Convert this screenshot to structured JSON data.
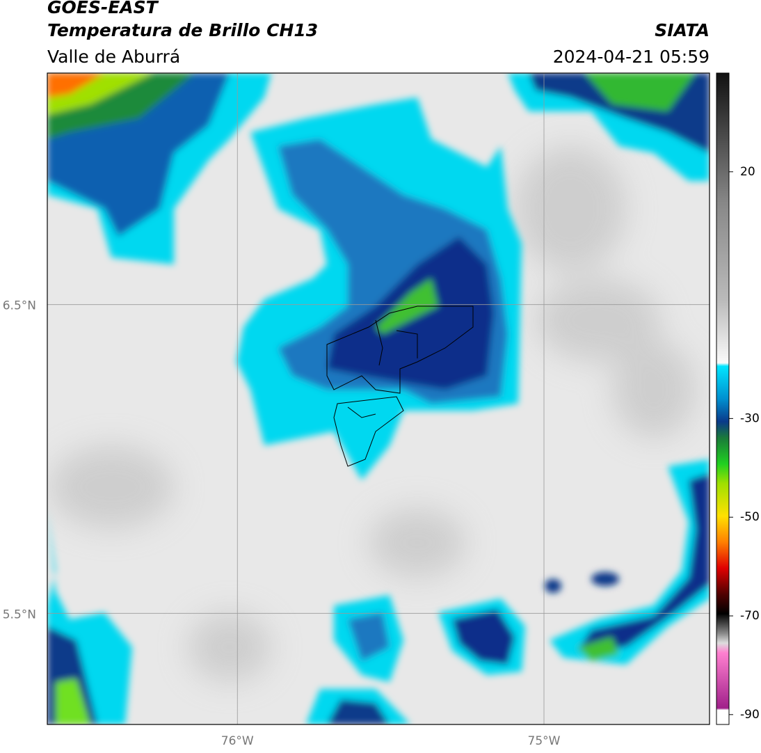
{
  "header": {
    "satellite": "GOES-EAST",
    "product": "Temperatura de Brillo CH13",
    "region": "Valle de Aburrá",
    "agency": "SIATA",
    "timestamp": "2024-04-21 05:59"
  },
  "map": {
    "xlim": [
      -76.62,
      -74.46
    ],
    "ylim": [
      5.14,
      7.25
    ],
    "xticks": [
      {
        "value": -76,
        "label": "76°W"
      },
      {
        "value": -75,
        "label": "75°W"
      }
    ],
    "yticks": [
      {
        "value": 6.5,
        "label": "6.5°N"
      },
      {
        "value": 5.5,
        "label": "5.5°N"
      }
    ]
  },
  "colorbar": {
    "lim": [
      -92,
      40
    ],
    "ticks": [
      20,
      -30,
      -50,
      -70,
      -90
    ]
  }
}
